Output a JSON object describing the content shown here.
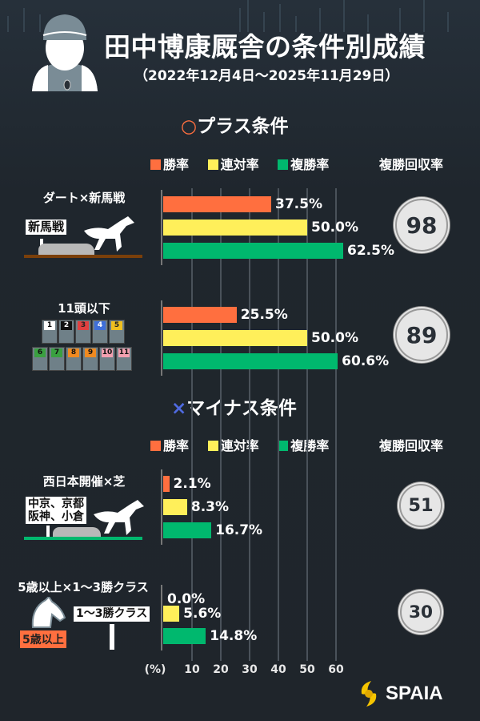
{
  "header": {
    "title": "田中博康厩舎の条件別成績",
    "period": "（2022年12月4日～2025年11月29日）"
  },
  "legend": {
    "items": [
      "勝率",
      "連対率",
      "複勝率"
    ],
    "recovery_label": "複勝回収率"
  },
  "colors": {
    "win": "#ff6f3f",
    "quinella": "#ffef5a",
    "place": "#00b86e",
    "plus_mark": "#ff6f3f",
    "minus_mark": "#4f6ae0"
  },
  "sections": {
    "plus": {
      "mark": "○",
      "label": "プラス条件"
    },
    "minus": {
      "mark": "×",
      "label": "マイナス条件"
    }
  },
  "illustrations": {
    "sign1": "新馬戦",
    "gate_numbers": [
      "1",
      "2",
      "3",
      "4",
      "5",
      "6",
      "7",
      "8",
      "9",
      "10",
      "11"
    ],
    "sign3a": "中京、京都",
    "sign3b": "阪神、小倉",
    "sign4": "1～3勝クラス",
    "tag4": "5歳以上"
  },
  "chart_data": {
    "type": "bar",
    "orientation": "horizontal",
    "series_names": [
      "勝率",
      "連対率",
      "複勝率"
    ],
    "categories": [
      "ダート×新馬戦",
      "11頭以下",
      "西日本開催×芝",
      "5歳以上×1～3勝クラス"
    ],
    "groups": [
      {
        "label": "ダート×新馬戦",
        "values": [
          37.5,
          50.0,
          62.5
        ],
        "labels": [
          "37.5%",
          "50.0%",
          "62.5%"
        ],
        "recovery": "98"
      },
      {
        "label": "11頭以下",
        "values": [
          25.5,
          50.0,
          60.6
        ],
        "labels": [
          "25.5%",
          "50.0%",
          "60.6%"
        ],
        "recovery": "89"
      },
      {
        "label": "西日本開催×芝",
        "values": [
          2.1,
          8.3,
          16.7
        ],
        "labels": [
          "2.1%",
          "8.3%",
          "16.7%"
        ],
        "recovery": "51"
      },
      {
        "label": "5歳以上×1～3勝クラス",
        "values": [
          0.0,
          5.6,
          14.8
        ],
        "labels": [
          "0.0%",
          "5.6%",
          "14.8%"
        ],
        "recovery": "30"
      }
    ],
    "xlim": [
      0,
      60
    ],
    "xunit": "(%)",
    "xticks": [
      "10",
      "20",
      "30",
      "40",
      "50",
      "60"
    ],
    "grid": true
  },
  "brand": {
    "name": "SPAIA"
  }
}
